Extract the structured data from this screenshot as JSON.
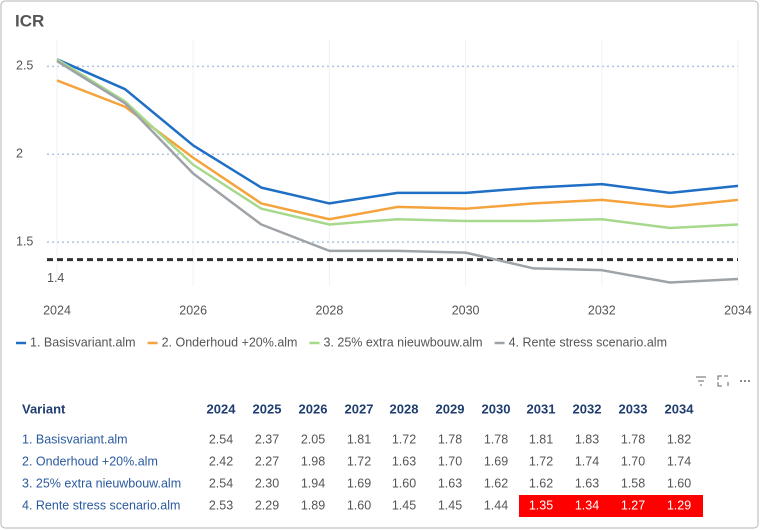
{
  "chart_data": {
    "type": "line",
    "title": "ICR",
    "x": [
      2024,
      2025,
      2026,
      2027,
      2028,
      2029,
      2030,
      2031,
      2032,
      2033,
      2034
    ],
    "series": [
      {
        "name": "1. Basisvariant.alm",
        "color": "#1f6fc5",
        "values": [
          2.54,
          2.37,
          2.05,
          1.81,
          1.72,
          1.78,
          1.78,
          1.81,
          1.83,
          1.78,
          1.82
        ]
      },
      {
        "name": "2. Onderhoud +20%.alm",
        "color": "#f5a33c",
        "values": [
          2.42,
          2.27,
          1.98,
          1.72,
          1.63,
          1.7,
          1.69,
          1.72,
          1.74,
          1.7,
          1.74
        ]
      },
      {
        "name": "3. 25% extra nieuwbouw.alm",
        "color": "#a6d98c",
        "values": [
          2.54,
          2.3,
          1.94,
          1.69,
          1.6,
          1.63,
          1.62,
          1.62,
          1.63,
          1.58,
          1.6
        ]
      },
      {
        "name": "4. Rente stress scenario.alm",
        "color": "#9ea3a8",
        "values": [
          2.53,
          2.29,
          1.89,
          1.6,
          1.45,
          1.45,
          1.44,
          1.35,
          1.34,
          1.27,
          1.29
        ]
      }
    ],
    "xlim": [
      2024,
      2034
    ],
    "xticks": [
      2024,
      2026,
      2028,
      2030,
      2032,
      2034
    ],
    "ylim": [
      1.25,
      2.65
    ],
    "yticks": [
      1.5,
      2.0,
      2.5
    ],
    "grid": true,
    "reference_line": 1.4,
    "reference_color": "#333333",
    "legend": "bottom"
  },
  "table": {
    "header": [
      "Variant",
      "2024",
      "2025",
      "2026",
      "2027",
      "2028",
      "2029",
      "2030",
      "2031",
      "2032",
      "2033",
      "2034"
    ],
    "rows": [
      [
        "1. Basisvariant.alm",
        "2.54",
        "2.37",
        "2.05",
        "1.81",
        "1.72",
        "1.78",
        "1.78",
        "1.81",
        "1.83",
        "1.78",
        "1.82"
      ],
      [
        "2. Onderhoud +20%.alm",
        "2.42",
        "2.27",
        "1.98",
        "1.72",
        "1.63",
        "1.70",
        "1.69",
        "1.72",
        "1.74",
        "1.70",
        "1.74"
      ],
      [
        "3. 25% extra nieuwbouw.alm",
        "2.54",
        "2.30",
        "1.94",
        "1.69",
        "1.60",
        "1.63",
        "1.62",
        "1.62",
        "1.63",
        "1.58",
        "1.60"
      ],
      [
        "4. Rente stress scenario.alm",
        "2.53",
        "2.29",
        "1.89",
        "1.60",
        "1.45",
        "1.45",
        "1.44",
        "1.35",
        "1.34",
        "1.27",
        "1.29"
      ]
    ],
    "highlighted_cells": [
      [
        3,
        8
      ],
      [
        3,
        9
      ],
      [
        3,
        10
      ],
      [
        3,
        11
      ]
    ],
    "highlight_color": "#ff0000"
  }
}
